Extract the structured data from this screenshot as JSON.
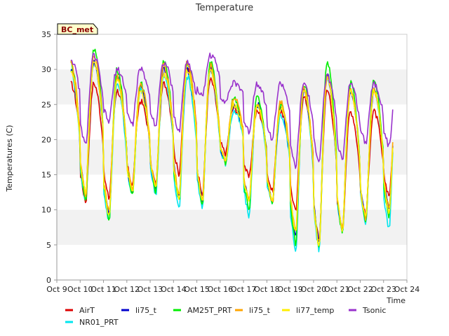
{
  "chart_data": {
    "type": "line",
    "title": "Temperature",
    "xlabel": "Time",
    "ylabel": "Temperatures (C)",
    "station_label": "BC_met",
    "ylim": [
      0,
      35
    ],
    "yticks": [
      0,
      5,
      10,
      15,
      20,
      25,
      30,
      35
    ],
    "xlim": [
      "Oct 9",
      "Oct 24"
    ],
    "xticks": [
      "Oct 9",
      "Oct 10",
      "Oct 11",
      "Oct 12",
      "Oct 13",
      "Oct 14",
      "Oct 15",
      "Oct 16",
      "Oct 17",
      "Oct 18",
      "Oct 19",
      "Oct 20",
      "Oct 21",
      "Oct 22",
      "Oct 23",
      "Oct 24"
    ],
    "grid": "horizontal bands",
    "legend_position": "bottom",
    "x_start_day": 9.6,
    "x_end_day": 23.4,
    "series": [
      {
        "name": "AirT",
        "color": "#dd0000",
        "min": [
          14,
          11,
          11.5,
          13.5,
          13.5,
          15,
          12,
          18,
          14.5,
          12.5,
          9.5,
          5.5,
          7,
          9,
          12
        ],
        "max": [
          28,
          28,
          27,
          25.5,
          28,
          30,
          28.5,
          24.5,
          24,
          24,
          26,
          27,
          24,
          24,
          24
        ]
      },
      {
        "name": "NR01_PRT",
        "color": "#00e5ee",
        "min": [
          10,
          11,
          8,
          12,
          12,
          10,
          10,
          16.5,
          9,
          10.5,
          4,
          4,
          6.5,
          8,
          7
        ],
        "max": [
          30,
          31,
          28,
          27,
          29,
          29,
          30,
          24,
          25,
          23.5,
          27,
          29,
          27,
          27,
          27
        ]
      },
      {
        "name": "li75_t",
        "color": "#0000cd",
        "min": [
          12,
          12,
          9,
          12.5,
          13,
          12,
          11,
          17,
          11,
          11,
          6,
          5,
          7,
          8.5,
          10
        ],
        "max": [
          30,
          31,
          29,
          27.5,
          30,
          30,
          30,
          25,
          25,
          24.5,
          27,
          29,
          27,
          27,
          27
        ]
      },
      {
        "name": "AM25T_PRT",
        "color": "#00ee00",
        "min": [
          11,
          11,
          8.5,
          12,
          12.5,
          11,
          10.5,
          16.5,
          10,
          11,
          5,
          4.5,
          6.5,
          8,
          9
        ],
        "max": [
          31,
          33,
          30,
          28,
          31,
          31,
          31,
          26,
          26,
          25,
          28,
          31,
          28,
          28.5,
          28
        ]
      },
      {
        "name": "li75_t",
        "color": "#ffa500",
        "min": [
          12,
          12,
          9.5,
          13,
          13,
          12,
          11,
          17,
          11,
          11,
          7,
          5,
          7,
          8.5,
          10
        ],
        "max": [
          31,
          32,
          29,
          28,
          30.5,
          31,
          30.5,
          26,
          25,
          25.5,
          27.5,
          29,
          27,
          27,
          27.5
        ]
      },
      {
        "name": "li77_temp",
        "color": "#ffee00",
        "min": [
          11.5,
          12,
          9,
          12.5,
          13,
          11.5,
          11,
          17,
          11,
          11,
          6.5,
          4.5,
          7,
          8.5,
          9.5
        ],
        "max": [
          30,
          31,
          28.5,
          27,
          29.5,
          30,
          30,
          25,
          25,
          24.5,
          27,
          29,
          27,
          27,
          27
        ]
      },
      {
        "name": "Tsonic",
        "color": "#9932cc",
        "min": [
          22,
          19,
          22.5,
          22,
          22,
          21,
          26,
          25.5,
          21,
          20,
          16,
          17,
          17,
          19.5,
          19
        ],
        "max": [
          31.5,
          32,
          30,
          30,
          31,
          31,
          32,
          28,
          28,
          28,
          28,
          29,
          28,
          28,
          28
        ]
      }
    ]
  }
}
